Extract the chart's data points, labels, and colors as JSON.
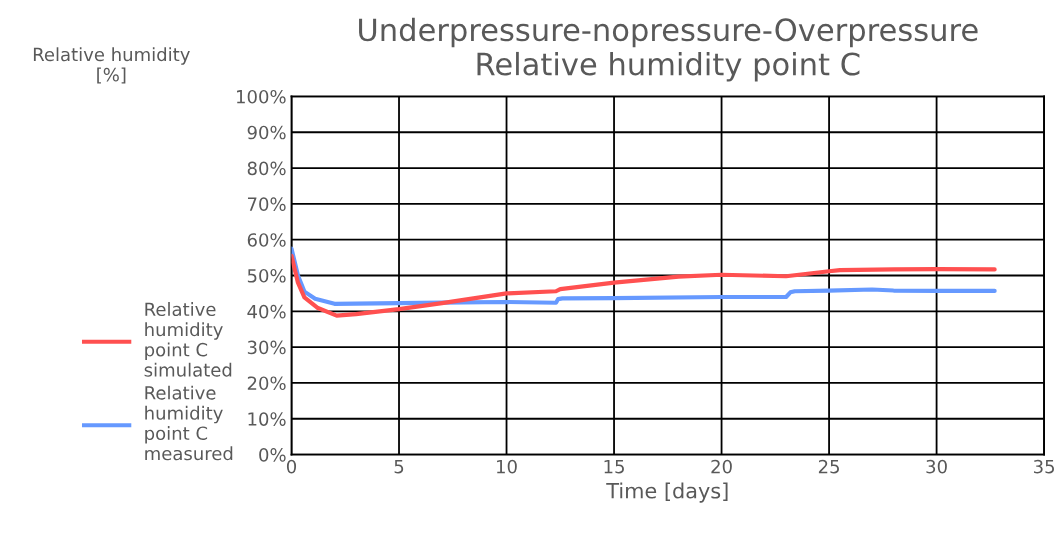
{
  "chart_data": {
    "type": "line",
    "title": "Underpressure-nopressure-Overpressure\nRelative humidity point C",
    "xlabel": "Time [days]",
    "ylabel": "Relative humidity\n[%]",
    "xlim": [
      0,
      35
    ],
    "xticks": [
      0,
      5,
      10,
      15,
      20,
      25,
      30,
      35
    ],
    "ylim": [
      0,
      100
    ],
    "yticks": [
      {
        "value": 0,
        "label": "0%"
      },
      {
        "value": 10,
        "label": "10%"
      },
      {
        "value": 20,
        "label": "20%"
      },
      {
        "value": 30,
        "label": "30%"
      },
      {
        "value": 40,
        "label": "40%"
      },
      {
        "value": 50,
        "label": "50%"
      },
      {
        "value": 60,
        "label": "60%"
      },
      {
        "value": 70,
        "label": "70%"
      },
      {
        "value": 80,
        "label": "80%"
      },
      {
        "value": 90,
        "label": "90%"
      },
      {
        "value": 100,
        "label": "100%"
      }
    ],
    "grid": true,
    "legend": "left",
    "marker": "none",
    "line_style": "solid",
    "series": [
      {
        "name": "Relative humidity point C simulated",
        "color": "#ff5050",
        "x": [
          0,
          0.3,
          0.6,
          1.2,
          2.1,
          3,
          5,
          7,
          10,
          12.3,
          12.5,
          15,
          18,
          20,
          23,
          25,
          25.5,
          28,
          30,
          32.7
        ],
        "values": [
          55.5,
          48,
          43.9,
          41,
          38.8,
          39.2,
          40.6,
          42.3,
          45,
          45.6,
          46.2,
          48,
          49.7,
          50.2,
          49.8,
          51.2,
          51.5,
          51.7,
          51.8,
          51.7
        ]
      },
      {
        "name": "Relative humidity point C measured",
        "color": "#6699ff",
        "x": [
          0,
          0.3,
          0.6,
          1.1,
          2,
          5,
          8,
          10,
          12.3,
          12.4,
          12.6,
          15,
          20,
          23,
          23.2,
          23.4,
          25,
          27,
          28,
          30,
          32.7
        ],
        "values": [
          57.5,
          50,
          45.5,
          43.5,
          42.1,
          42.3,
          42.5,
          42.6,
          42.4,
          43.4,
          43.6,
          43.7,
          44.0,
          44.0,
          45.3,
          45.6,
          45.8,
          46.1,
          45.8,
          45.7,
          45.7
        ]
      }
    ]
  }
}
